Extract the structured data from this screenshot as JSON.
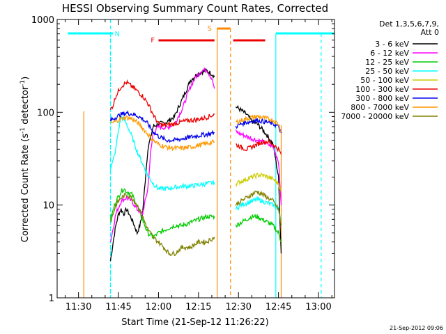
{
  "chart_data": {
    "type": "line",
    "title": "HESSI Observing Summary Count Rates, Corrected",
    "xlabel": "Start Time (21-Sep-12 11:26:22)",
    "ylabel": "Corrected Count Rate (s",
    "ylabel_sup1": "-1",
    "ylabel_mid": " detector",
    "ylabel_sup2": "-1",
    "ylabel_end": ")",
    "yscale": "log",
    "ylim": [
      1,
      1000
    ],
    "xlim_minutes": [
      11.22,
      13.06
    ],
    "yticks": [
      {
        "v": 1,
        "label": "1"
      },
      {
        "v": 10,
        "label": "10"
      },
      {
        "v": 100,
        "label": "100"
      },
      {
        "v": 1000,
        "label": "1000"
      }
    ],
    "xticks": [
      {
        "t": "11:30"
      },
      {
        "t": "11:45"
      },
      {
        "t": "12:00"
      },
      {
        "t": "12:15"
      },
      {
        "t": "12:30"
      },
      {
        "t": "12:45"
      },
      {
        "t": "13:00"
      }
    ],
    "legend_header": [
      "Det 1,3,5,6,7,9,",
      "Att 0"
    ],
    "legend_position": "top-right, outside plot",
    "series": [
      {
        "name": "3 - 6 keV",
        "color": "#000000",
        "x": [
          "11:42",
          "11:43",
          "11:44",
          "11:45",
          "11:46",
          "11:47",
          "11:48",
          "11:49",
          "11:50",
          "11:51",
          "11:52",
          "11:53",
          "11:54",
          "11:56",
          "11:58",
          "12:00",
          "12:03",
          "12:06",
          "12:09",
          "12:12",
          "12:14",
          "12:16",
          "12:18",
          "12:20",
          "12:21",
          null,
          "12:29",
          "12:31",
          "12:33",
          "12:35",
          "12:37",
          "12:39",
          "12:41",
          "12:43",
          "12:45",
          "12:46"
        ],
        "y": [
          2.5,
          4,
          6,
          8,
          9,
          8,
          9,
          8,
          7,
          6,
          5,
          6,
          8,
          40,
          70,
          75,
          78,
          90,
          140,
          220,
          250,
          270,
          280,
          260,
          240,
          null,
          115,
          105,
          95,
          80,
          75,
          65,
          55,
          45,
          20,
          3
        ]
      },
      {
        "name": "6 - 12 keV",
        "color": "#ff00ff",
        "x": [
          "11:42",
          "11:44",
          "11:46",
          "11:48",
          "11:50",
          "11:52",
          "11:54",
          "11:56",
          "11:57",
          "11:58",
          "12:00",
          "12:03",
          "12:06",
          "12:09",
          "12:12",
          "12:14",
          "12:16",
          "12:18",
          "12:20",
          "12:21",
          null,
          "12:29",
          "12:31",
          "12:33",
          "12:35",
          "12:37",
          "12:39",
          "12:41",
          "12:43",
          "12:45",
          "12:46"
        ],
        "y": [
          4,
          8,
          11,
          12,
          11,
          9,
          8,
          15,
          35,
          60,
          70,
          68,
          75,
          110,
          190,
          240,
          280,
          290,
          230,
          180,
          null,
          62,
          58,
          55,
          52,
          50,
          48,
          45,
          42,
          30,
          10
        ]
      },
      {
        "name": "12 - 25 keV",
        "color": "#00cc00",
        "x": [
          "11:42",
          "11:44",
          "11:46",
          "11:47",
          "11:48",
          "11:50",
          "11:52",
          "11:54",
          "11:56",
          "11:58",
          "12:00",
          "12:03",
          "12:06",
          "12:09",
          "12:12",
          "12:15",
          "12:18",
          "12:21",
          null,
          "12:29",
          "12:31",
          "12:33",
          "12:35",
          "12:37",
          "12:39",
          "12:41",
          "12:43",
          "12:45",
          "12:46"
        ],
        "y": [
          7,
          11,
          14,
          15,
          14,
          13,
          10,
          7,
          5,
          4.5,
          5,
          5.5,
          6,
          6,
          6.5,
          7,
          7.5,
          7.5,
          null,
          6,
          6.5,
          7,
          7.5,
          7.5,
          7,
          6.5,
          6,
          5,
          4
        ]
      },
      {
        "name": "25 - 50 keV",
        "color": "#00ffff",
        "x": [
          "11:42",
          "11:43",
          "11:44",
          "11:45",
          "11:46",
          "11:47",
          "11:48",
          "11:50",
          "11:52",
          "11:54",
          "11:56",
          "11:58",
          "12:00",
          "12:03",
          "12:06",
          "12:09",
          "12:12",
          "12:15",
          "12:18",
          "12:21",
          null,
          "12:29",
          "12:31",
          "12:33",
          "12:35",
          "12:37",
          "12:39",
          "12:41",
          "12:43",
          "12:45",
          "12:46"
        ],
        "y": [
          25,
          30,
          40,
          65,
          88,
          85,
          75,
          55,
          38,
          28,
          21,
          17,
          15,
          15,
          15.5,
          16,
          16,
          16.5,
          17,
          17.5,
          null,
          9,
          10,
          10.5,
          11,
          11.5,
          11,
          10.5,
          10,
          9,
          7
        ]
      },
      {
        "name": "50 - 100 keV",
        "color": "#cccc00",
        "x": [
          "12:29",
          "12:31",
          "12:33",
          "12:35",
          "12:37",
          "12:39",
          "12:41",
          "12:43",
          "12:45",
          "12:46"
        ],
        "y": [
          17,
          18,
          19,
          20,
          21,
          21,
          20,
          19,
          17,
          14
        ]
      },
      {
        "name": "100 - 300 keV",
        "color": "#ee0000",
        "x": [
          "11:42",
          "11:43",
          "11:44",
          "11:46",
          "11:48",
          "11:50",
          "11:52",
          "11:54",
          "11:56",
          "11:58",
          "12:00",
          "12:02",
          "12:04",
          "12:06",
          "12:08",
          "12:10",
          "12:12",
          "12:15",
          "12:18",
          "12:21",
          null,
          "12:29",
          "12:31",
          "12:33",
          "12:35",
          "12:37",
          "12:39",
          "12:41",
          "12:43",
          "12:45",
          "12:46"
        ],
        "y": [
          105,
          120,
          150,
          190,
          210,
          190,
          170,
          150,
          125,
          95,
          75,
          72,
          73,
          75,
          78,
          80,
          82,
          84,
          88,
          95,
          null,
          45,
          42,
          40,
          42,
          45,
          48,
          48,
          45,
          40,
          35
        ]
      },
      {
        "name": "300 - 800 keV",
        "color": "#0000ee",
        "x": [
          "11:42",
          "11:43",
          "11:44",
          "11:46",
          "11:48",
          "11:50",
          "11:52",
          "11:54",
          "11:56",
          "11:58",
          "12:00",
          "12:03",
          "12:06",
          "12:09",
          "12:12",
          "12:15",
          "12:18",
          "12:21",
          null,
          "12:29",
          "12:31",
          "12:33",
          "12:35",
          "12:37",
          "12:39",
          "12:41",
          "12:43",
          "12:45",
          "12:46"
        ],
        "y": [
          82,
          85,
          88,
          95,
          98,
          96,
          92,
          85,
          75,
          62,
          55,
          50,
          50,
          52,
          54,
          56,
          58,
          60,
          null,
          70,
          75,
          78,
          80,
          82,
          80,
          78,
          75,
          70,
          60
        ]
      },
      {
        "name": "800 - 7000 keV",
        "color": "#ff9900",
        "x": [
          "11:42",
          "11:44",
          "11:46",
          "11:48",
          "11:50",
          "11:52",
          "11:54",
          "11:56",
          "11:58",
          "12:00",
          "12:03",
          "12:06",
          "12:09",
          "12:12",
          "12:15",
          "12:18",
          "12:21",
          null,
          "12:29",
          "12:31",
          "12:33",
          "12:35",
          "12:37",
          "12:39",
          "12:41",
          "12:43",
          "12:45",
          "12:46"
        ],
        "y": [
          75,
          80,
          85,
          88,
          85,
          78,
          68,
          58,
          50,
          45,
          42,
          41,
          41,
          42,
          44,
          46,
          48,
          null,
          78,
          82,
          85,
          88,
          90,
          88,
          85,
          82,
          75,
          62
        ]
      },
      {
        "name": "7000 - 20000 keV",
        "color": "#808000",
        "x": [
          "11:42",
          "11:44",
          "11:46",
          "11:48",
          "11:50",
          "11:52",
          "11:54",
          "11:56",
          "11:58",
          "12:00",
          "12:02",
          "12:04",
          "12:06",
          "12:09",
          "12:12",
          "12:15",
          "12:18",
          "12:21",
          null,
          "12:29",
          "12:31",
          "12:33",
          "12:35",
          "12:37",
          "12:39",
          "12:41",
          "12:43",
          "12:45",
          "12:46"
        ],
        "y": [
          6.5,
          10,
          12,
          13,
          12,
          10,
          7.5,
          5.5,
          4.5,
          4,
          3.5,
          3,
          3,
          3.5,
          3.5,
          4,
          4,
          4.5,
          null,
          10,
          11,
          12,
          13,
          14,
          13,
          12,
          11,
          9,
          6
        ]
      }
    ],
    "annotations": [
      {
        "label": "N",
        "kind": "cyan top bars",
        "x_start": "11:42",
        "x_end": "12:45",
        "ranges": [
          [
            "11:26",
            "11:43"
          ],
          [
            "12:44",
            "13:06"
          ]
        ]
      },
      {
        "label": "F",
        "kind": "red bars",
        "ranges": [
          [
            "12:00",
            "12:21"
          ],
          [
            "12:28",
            "12:40"
          ]
        ]
      },
      {
        "label": "S",
        "kind": "orange interval",
        "ranges": [
          [
            "12:22",
            "12:27"
          ]
        ]
      }
    ]
  },
  "footer_timestamp": "21-Sep-2012 09:06",
  "colors": {
    "background": "#ffffff",
    "axis": "#000000",
    "cyan": "#00ffff",
    "orange": "#ff8800",
    "red": "#ee0000"
  }
}
